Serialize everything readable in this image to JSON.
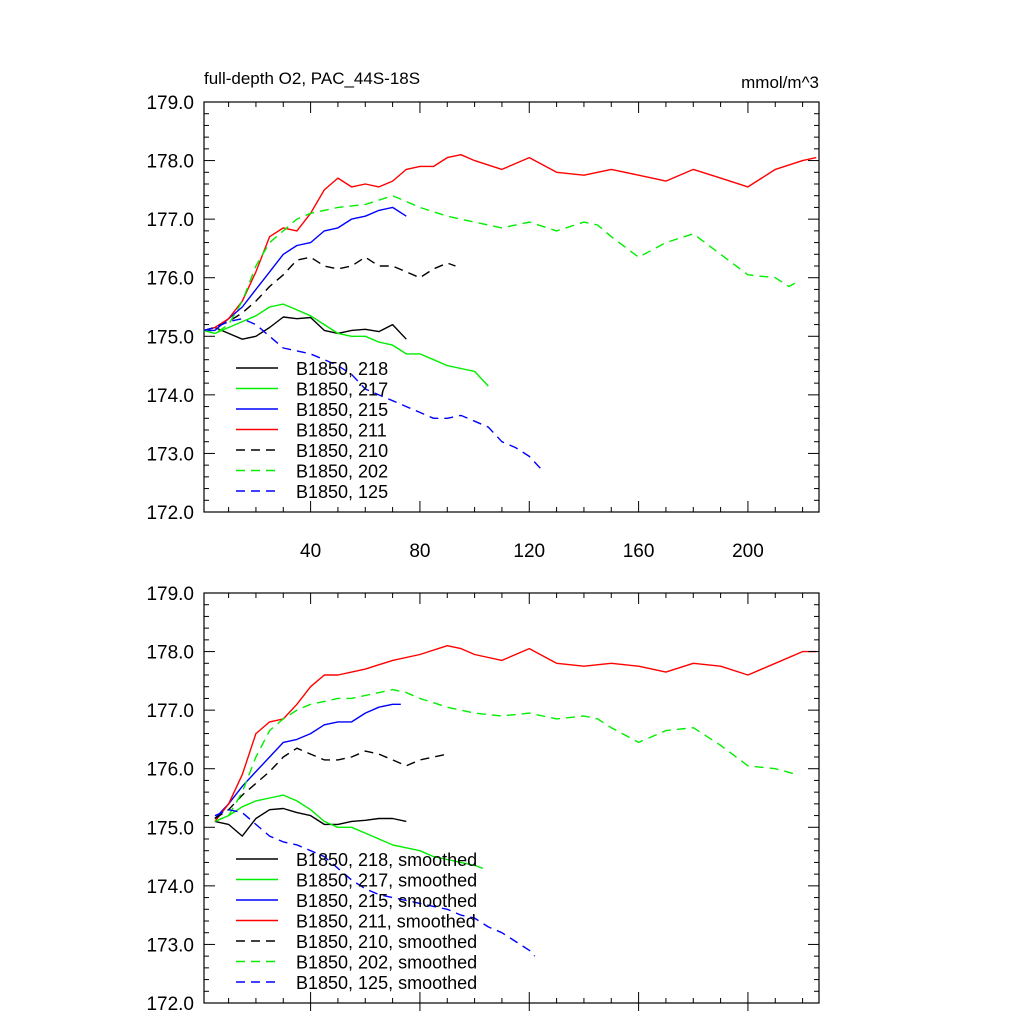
{
  "chart_data": [
    {
      "type": "line",
      "title": "full-depth O2, PAC_44S-18S",
      "units": "mmol/m^3",
      "xlim": [
        1,
        226
      ],
      "ylim": [
        172,
        179
      ],
      "yticks": [
        "172.0",
        "173.0",
        "174.0",
        "175.0",
        "176.0",
        "177.0",
        "178.0",
        "179.0"
      ],
      "xticks": [
        "40",
        "80",
        "120",
        "160",
        "200"
      ],
      "legend_position": "lower-left",
      "series": [
        {
          "name": "B1850, 218",
          "color": "#000000",
          "dashed": false,
          "x": [
            1,
            5,
            10,
            15,
            20,
            25,
            30,
            35,
            40,
            45,
            50,
            55,
            60,
            65,
            70,
            75
          ],
          "y": [
            175.1,
            175.15,
            175.05,
            174.95,
            175.0,
            175.15,
            175.33,
            175.3,
            175.32,
            175.1,
            175.05,
            175.1,
            175.12,
            175.08,
            175.2,
            174.95
          ]
        },
        {
          "name": "B1850, 217",
          "color": "#00ee00",
          "dashed": false,
          "x": [
            1,
            5,
            10,
            15,
            20,
            25,
            30,
            35,
            40,
            45,
            50,
            55,
            60,
            65,
            70,
            75,
            80,
            85,
            90,
            95,
            100,
            105
          ],
          "y": [
            175.1,
            175.05,
            175.15,
            175.25,
            175.35,
            175.5,
            175.55,
            175.45,
            175.35,
            175.2,
            175.05,
            175.0,
            175.0,
            174.9,
            174.85,
            174.7,
            174.7,
            174.6,
            174.5,
            174.45,
            174.4,
            174.15
          ]
        },
        {
          "name": "B1850, 215",
          "color": "#0000ff",
          "dashed": false,
          "x": [
            1,
            5,
            10,
            15,
            20,
            25,
            30,
            35,
            40,
            45,
            50,
            55,
            60,
            65,
            70,
            75
          ],
          "y": [
            175.1,
            175.1,
            175.3,
            175.5,
            175.8,
            176.1,
            176.4,
            176.55,
            176.6,
            176.8,
            176.85,
            177.0,
            177.05,
            177.15,
            177.2,
            177.05
          ]
        },
        {
          "name": "B1850, 211",
          "color": "#ff0000",
          "dashed": false,
          "x": [
            1,
            5,
            10,
            15,
            20,
            25,
            30,
            35,
            40,
            45,
            50,
            55,
            60,
            65,
            70,
            75,
            80,
            85,
            90,
            95,
            100,
            110,
            120,
            130,
            140,
            150,
            160,
            170,
            180,
            190,
            200,
            210,
            220,
            225
          ],
          "y": [
            175.1,
            175.15,
            175.3,
            175.6,
            176.1,
            176.7,
            176.85,
            176.8,
            177.1,
            177.5,
            177.7,
            177.55,
            177.6,
            177.55,
            177.65,
            177.85,
            177.9,
            177.9,
            178.05,
            178.1,
            178.0,
            177.85,
            178.05,
            177.8,
            177.75,
            177.85,
            177.75,
            177.65,
            177.85,
            177.7,
            177.55,
            177.85,
            178.0,
            178.05
          ]
        },
        {
          "name": "B1850, 210",
          "color": "#000000",
          "dashed": true,
          "x": [
            1,
            5,
            10,
            15,
            20,
            25,
            30,
            35,
            40,
            45,
            50,
            55,
            60,
            65,
            70,
            75,
            80,
            85,
            90,
            93
          ],
          "y": [
            175.1,
            175.15,
            175.25,
            175.4,
            175.6,
            175.85,
            176.05,
            176.3,
            176.35,
            176.2,
            176.15,
            176.2,
            176.35,
            176.2,
            176.2,
            176.1,
            176.0,
            176.15,
            176.25,
            176.2
          ]
        },
        {
          "name": "B1850, 202",
          "color": "#00ee00",
          "dashed": true,
          "x": [
            1,
            5,
            10,
            15,
            20,
            25,
            30,
            35,
            40,
            45,
            50,
            60,
            70,
            80,
            90,
            100,
            110,
            120,
            130,
            140,
            145,
            150,
            160,
            170,
            180,
            190,
            200,
            210,
            215,
            219
          ],
          "y": [
            175.1,
            175.05,
            175.2,
            175.6,
            176.2,
            176.6,
            176.8,
            177.0,
            177.1,
            177.15,
            177.2,
            177.25,
            177.4,
            177.2,
            177.05,
            176.95,
            176.85,
            176.95,
            176.8,
            176.95,
            176.9,
            176.7,
            176.35,
            176.6,
            176.75,
            176.4,
            176.05,
            176.0,
            175.85,
            175.95
          ]
        },
        {
          "name": "B1850, 125",
          "color": "#0000ff",
          "dashed": true,
          "x": [
            1,
            5,
            10,
            15,
            20,
            25,
            30,
            35,
            40,
            45,
            50,
            55,
            60,
            65,
            70,
            75,
            80,
            85,
            90,
            95,
            100,
            105,
            110,
            115,
            120,
            125
          ],
          "y": [
            175.1,
            175.15,
            175.25,
            175.3,
            175.2,
            175.0,
            174.8,
            174.75,
            174.7,
            174.6,
            174.5,
            174.35,
            174.1,
            174.0,
            173.9,
            173.8,
            173.7,
            173.6,
            173.6,
            173.65,
            173.55,
            173.45,
            173.2,
            173.1,
            172.95,
            172.7
          ]
        }
      ]
    },
    {
      "type": "line",
      "title": "",
      "xlim": [
        1,
        226
      ],
      "ylim": [
        172,
        179
      ],
      "yticks": [
        "172.0",
        "173.0",
        "174.0",
        "175.0",
        "176.0",
        "177.0",
        "178.0",
        "179.0"
      ],
      "legend_position": "lower-left",
      "series": [
        {
          "name": "B1850, 218, smoothed",
          "color": "#000000",
          "dashed": false,
          "x": [
            5,
            10,
            15,
            20,
            25,
            30,
            35,
            40,
            45,
            50,
            55,
            60,
            65,
            70,
            75
          ],
          "y": [
            175.1,
            175.05,
            174.85,
            175.15,
            175.3,
            175.32,
            175.25,
            175.2,
            175.05,
            175.05,
            175.1,
            175.12,
            175.15,
            175.15,
            175.1
          ]
        },
        {
          "name": "B1850, 217, smoothed",
          "color": "#00ee00",
          "dashed": false,
          "x": [
            5,
            10,
            15,
            20,
            25,
            30,
            35,
            40,
            45,
            50,
            55,
            60,
            65,
            70,
            75,
            80,
            85,
            90,
            95,
            100,
            103
          ],
          "y": [
            175.1,
            175.2,
            175.35,
            175.45,
            175.5,
            175.55,
            175.45,
            175.3,
            175.1,
            175.0,
            175.0,
            174.9,
            174.8,
            174.7,
            174.65,
            174.6,
            174.5,
            174.45,
            174.4,
            174.35,
            174.3
          ]
        },
        {
          "name": "B1850, 215, smoothed",
          "color": "#0000ff",
          "dashed": false,
          "x": [
            5,
            10,
            15,
            20,
            25,
            30,
            35,
            40,
            45,
            50,
            55,
            60,
            65,
            70,
            73
          ],
          "y": [
            175.15,
            175.4,
            175.7,
            175.95,
            176.2,
            176.45,
            176.5,
            176.6,
            176.75,
            176.8,
            176.8,
            176.95,
            177.05,
            177.1,
            177.1
          ]
        },
        {
          "name": "B1850, 211, smoothed",
          "color": "#ff0000",
          "dashed": false,
          "x": [
            5,
            10,
            15,
            20,
            25,
            30,
            35,
            40,
            45,
            50,
            55,
            60,
            70,
            80,
            90,
            95,
            100,
            110,
            120,
            130,
            140,
            150,
            160,
            170,
            180,
            190,
            200,
            210,
            220,
            225
          ],
          "y": [
            175.1,
            175.4,
            175.9,
            176.6,
            176.8,
            176.85,
            177.1,
            177.4,
            177.6,
            177.6,
            177.65,
            177.7,
            177.85,
            177.95,
            178.1,
            178.05,
            177.95,
            177.85,
            178.05,
            177.8,
            177.75,
            177.8,
            177.75,
            177.65,
            177.8,
            177.75,
            177.6,
            177.8,
            178.0,
            178.0
          ]
        },
        {
          "name": "B1850, 210, smoothed",
          "color": "#000000",
          "dashed": true,
          "x": [
            5,
            10,
            15,
            20,
            25,
            30,
            35,
            40,
            45,
            50,
            55,
            60,
            65,
            70,
            75,
            80,
            85,
            90
          ],
          "y": [
            175.15,
            175.3,
            175.55,
            175.75,
            175.95,
            176.2,
            176.35,
            176.25,
            176.15,
            176.15,
            176.2,
            176.3,
            176.25,
            176.15,
            176.05,
            176.15,
            176.2,
            176.25
          ]
        },
        {
          "name": "B1850, 202, smoothed",
          "color": "#00ee00",
          "dashed": true,
          "x": [
            5,
            10,
            15,
            20,
            25,
            30,
            35,
            40,
            45,
            50,
            55,
            60,
            65,
            70,
            75,
            80,
            90,
            100,
            110,
            120,
            130,
            140,
            145,
            150,
            160,
            170,
            180,
            190,
            200,
            210,
            218
          ],
          "y": [
            175.1,
            175.2,
            175.6,
            176.2,
            176.65,
            176.85,
            177.0,
            177.1,
            177.15,
            177.2,
            177.2,
            177.25,
            177.3,
            177.35,
            177.3,
            177.2,
            177.05,
            176.95,
            176.9,
            176.95,
            176.85,
            176.9,
            176.85,
            176.7,
            176.45,
            176.65,
            176.7,
            176.4,
            176.05,
            176.0,
            175.9
          ]
        },
        {
          "name": "B1850, 125, smoothed",
          "color": "#0000ff",
          "dashed": true,
          "x": [
            5,
            10,
            15,
            20,
            25,
            30,
            35,
            40,
            45,
            50,
            55,
            60,
            65,
            70,
            75,
            80,
            85,
            90,
            95,
            100,
            105,
            110,
            115,
            120,
            122
          ],
          "y": [
            175.2,
            175.3,
            175.25,
            175.05,
            174.85,
            174.75,
            174.7,
            174.6,
            174.5,
            174.3,
            174.1,
            173.95,
            173.85,
            173.8,
            173.75,
            173.7,
            173.65,
            173.6,
            173.5,
            173.45,
            173.3,
            173.2,
            173.05,
            172.9,
            172.8
          ]
        }
      ]
    }
  ]
}
